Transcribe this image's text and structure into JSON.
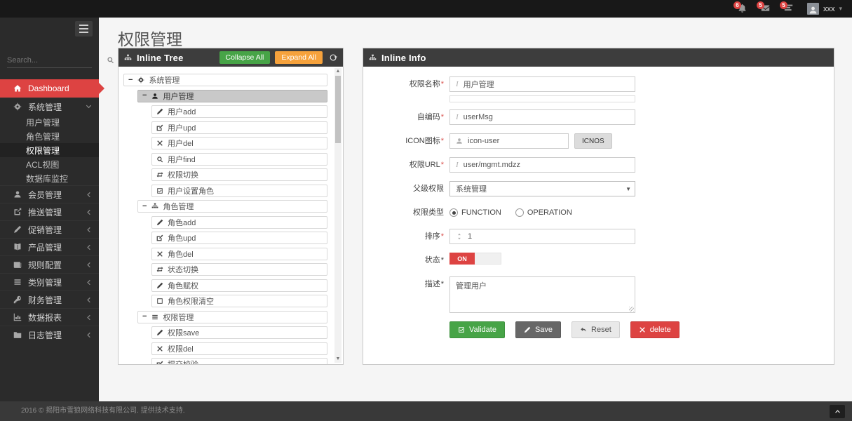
{
  "navbar": {
    "badges": [
      {
        "icon": "bell-icon",
        "count": "6"
      },
      {
        "icon": "envelope-icon",
        "count": "5"
      },
      {
        "icon": "tasks-icon",
        "count": "5"
      }
    ],
    "user": {
      "name": "xxx"
    }
  },
  "sidebar": {
    "search_placeholder": "Search...",
    "items": [
      {
        "icon": "home",
        "label": "Dashboard",
        "style": "red"
      },
      {
        "icon": "gears",
        "label": "系统管理",
        "expanded": true,
        "children": [
          "用户管理",
          "角色管理",
          "权限管理",
          "ACL视图",
          "数据库监控"
        ],
        "active_child": "权限管理"
      },
      {
        "icon": "person",
        "label": "会员管理"
      },
      {
        "icon": "share",
        "label": "推送管理"
      },
      {
        "icon": "pencil",
        "label": "促销管理"
      },
      {
        "icon": "book",
        "label": "产品管理"
      },
      {
        "icon": "newspaper",
        "label": "规则配置"
      },
      {
        "icon": "list",
        "label": "类别管理"
      },
      {
        "icon": "key",
        "label": "财务管理"
      },
      {
        "icon": "chart",
        "label": "数据报表"
      },
      {
        "icon": "folder",
        "label": "日志管理"
      }
    ]
  },
  "page": {
    "title": "权限管理"
  },
  "tree_panel": {
    "title": "Inline Tree",
    "collapse_label": "Collapse All",
    "expand_label": "Expand All",
    "refresh_icon": "refresh-icon",
    "nodes": [
      {
        "level": 0,
        "icon": "gears",
        "label": "系统管理",
        "collapsible": true
      },
      {
        "level": 1,
        "icon": "person",
        "label": "用户管理",
        "collapsible": true,
        "selected": true
      },
      {
        "level": 2,
        "icon": "pencil",
        "label": "用户add"
      },
      {
        "level": 2,
        "icon": "edit",
        "label": "用户upd"
      },
      {
        "level": 2,
        "icon": "x",
        "label": "用户del"
      },
      {
        "level": 2,
        "icon": "search",
        "label": "用户find"
      },
      {
        "level": 2,
        "icon": "repeat",
        "label": "权限切换"
      },
      {
        "level": 2,
        "icon": "check-square",
        "label": "用户设置角色"
      },
      {
        "level": 1,
        "icon": "sitemap",
        "label": "角色管理",
        "collapsible": true
      },
      {
        "level": 2,
        "icon": "pencil",
        "label": "角色add"
      },
      {
        "level": 2,
        "icon": "edit",
        "label": "角色upd"
      },
      {
        "level": 2,
        "icon": "x",
        "label": "角色del"
      },
      {
        "level": 2,
        "icon": "repeat",
        "label": "状态切换"
      },
      {
        "level": 2,
        "icon": "pencil",
        "label": "角色赋权"
      },
      {
        "level": 2,
        "icon": "square",
        "label": "角色权限清空"
      },
      {
        "level": 1,
        "icon": "list",
        "label": "权限管理",
        "collapsible": true
      },
      {
        "level": 2,
        "icon": "pencil",
        "label": "权限save"
      },
      {
        "level": 2,
        "icon": "x",
        "label": "权限del"
      },
      {
        "level": 2,
        "icon": "edit",
        "label": "提交校验"
      }
    ]
  },
  "info_panel": {
    "title": "Inline Info",
    "fields": {
      "name": {
        "label": "权限名称",
        "required": "*",
        "value": "用户管理"
      },
      "code": {
        "label": "自编码",
        "required": "*",
        "value": "userMsg"
      },
      "icon": {
        "label": "ICON图标",
        "required": "*",
        "value": "icon-user",
        "button": "ICNOS"
      },
      "url": {
        "label": "权限URL",
        "required": "*",
        "value": "user/mgmt.mdzz"
      },
      "parent": {
        "label": "父级权限",
        "value": "系统管理"
      },
      "type": {
        "label": "权限类型",
        "options": [
          "FUNCTION",
          "OPERATION"
        ],
        "selected": "FUNCTION"
      },
      "sort": {
        "label": "排序",
        "required": "*",
        "value": "1"
      },
      "status": {
        "label": "状态",
        "required": "*",
        "value": "ON"
      },
      "desc": {
        "label": "描述",
        "required": "*",
        "value": "管理用户"
      }
    },
    "buttons": [
      {
        "icon": "check-square",
        "label": "Validate",
        "style": "green"
      },
      {
        "icon": "pencil",
        "label": "Save",
        "style": "dark"
      },
      {
        "icon": "reply",
        "label": "Reset",
        "style": "light"
      },
      {
        "icon": "x",
        "label": "delete",
        "style": "red"
      }
    ]
  },
  "footer": {
    "text": "2016 © 揭阳市雪狼网络科技有限公司. 提供技术支持."
  },
  "colors": {
    "accent_red": "#dd4342",
    "green": "#47a447",
    "orange": "#f6a23c",
    "panel_header": "#3d3d3d"
  }
}
